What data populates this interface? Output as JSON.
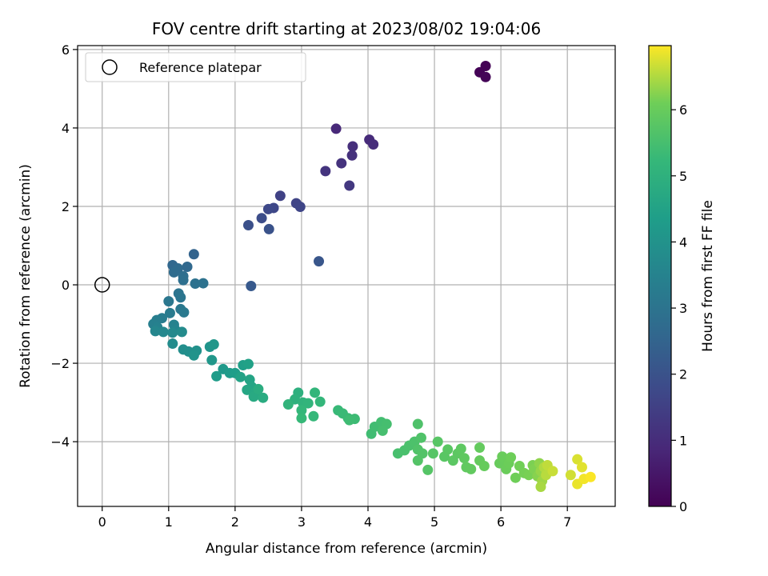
{
  "chart_data": {
    "type": "scatter",
    "title": "FOV centre drift starting at 2023/08/02 19:04:06",
    "xlabel": "Angular distance from reference (arcmin)",
    "ylabel": "Rotation from reference (arcmin)",
    "xlim": [
      -0.37,
      7.72
    ],
    "ylim": [
      -5.65,
      6.1
    ],
    "xticks": [
      0,
      1,
      2,
      3,
      4,
      5,
      6,
      7
    ],
    "yticks": [
      -4,
      -2,
      0,
      2,
      4,
      6
    ],
    "grid": true,
    "legend": {
      "position": "top-left",
      "entries": [
        "Reference platepar"
      ]
    },
    "reference_point": {
      "x": 0,
      "y": 0
    },
    "colorbar": {
      "label": "Hours from first FF file",
      "colormap": "viridis",
      "range": [
        0,
        6.97
      ],
      "ticks": [
        0,
        1,
        2,
        3,
        4,
        5,
        6
      ]
    },
    "points": [
      {
        "x": 5.77,
        "y": 5.58,
        "c": 0.02
      },
      {
        "x": 5.68,
        "y": 5.42,
        "c": 0.05
      },
      {
        "x": 5.77,
        "y": 5.3,
        "c": 0.08
      },
      {
        "x": 3.52,
        "y": 3.98,
        "c": 0.9
      },
      {
        "x": 4.02,
        "y": 3.7,
        "c": 0.95
      },
      {
        "x": 4.08,
        "y": 3.58,
        "c": 1.0
      },
      {
        "x": 3.77,
        "y": 3.53,
        "c": 1.05
      },
      {
        "x": 3.76,
        "y": 3.3,
        "c": 1.1
      },
      {
        "x": 3.6,
        "y": 3.1,
        "c": 1.15
      },
      {
        "x": 3.36,
        "y": 2.9,
        "c": 1.2
      },
      {
        "x": 3.72,
        "y": 2.53,
        "c": 1.3
      },
      {
        "x": 2.68,
        "y": 2.27,
        "c": 1.55
      },
      {
        "x": 2.92,
        "y": 2.08,
        "c": 1.6
      },
      {
        "x": 2.98,
        "y": 1.99,
        "c": 1.65
      },
      {
        "x": 2.58,
        "y": 1.96,
        "c": 1.7
      },
      {
        "x": 2.5,
        "y": 1.93,
        "c": 1.75
      },
      {
        "x": 2.4,
        "y": 1.7,
        "c": 1.85
      },
      {
        "x": 2.2,
        "y": 1.52,
        "c": 1.95
      },
      {
        "x": 2.51,
        "y": 1.42,
        "c": 2.0
      },
      {
        "x": 3.26,
        "y": 0.6,
        "c": 2.1
      },
      {
        "x": 2.24,
        "y": -0.03,
        "c": 2.2
      },
      {
        "x": 1.38,
        "y": 0.78,
        "c": 2.5
      },
      {
        "x": 1.06,
        "y": 0.5,
        "c": 2.6
      },
      {
        "x": 1.28,
        "y": 0.46,
        "c": 2.65
      },
      {
        "x": 1.14,
        "y": 0.42,
        "c": 2.7
      },
      {
        "x": 1.08,
        "y": 0.32,
        "c": 2.75
      },
      {
        "x": 1.22,
        "y": 0.22,
        "c": 2.8
      },
      {
        "x": 1.22,
        "y": 0.12,
        "c": 2.85
      },
      {
        "x": 1.4,
        "y": 0.03,
        "c": 2.9
      },
      {
        "x": 1.52,
        "y": 0.04,
        "c": 2.95
      },
      {
        "x": 1.15,
        "y": -0.22,
        "c": 3.0
      },
      {
        "x": 1.18,
        "y": -0.32,
        "c": 3.05
      },
      {
        "x": 1.0,
        "y": -0.42,
        "c": 3.1
      },
      {
        "x": 1.18,
        "y": -0.62,
        "c": 3.15
      },
      {
        "x": 1.23,
        "y": -0.7,
        "c": 3.2
      },
      {
        "x": 1.02,
        "y": -0.72,
        "c": 3.25
      },
      {
        "x": 0.9,
        "y": -0.85,
        "c": 3.3
      },
      {
        "x": 0.82,
        "y": -0.9,
        "c": 3.35
      },
      {
        "x": 0.77,
        "y": -1.0,
        "c": 3.4
      },
      {
        "x": 0.83,
        "y": -1.08,
        "c": 3.45
      },
      {
        "x": 1.08,
        "y": -1.02,
        "c": 3.5
      },
      {
        "x": 1.1,
        "y": -1.15,
        "c": 3.55
      },
      {
        "x": 0.8,
        "y": -1.18,
        "c": 3.6
      },
      {
        "x": 0.92,
        "y": -1.2,
        "c": 3.65
      },
      {
        "x": 1.06,
        "y": -1.22,
        "c": 3.7
      },
      {
        "x": 1.2,
        "y": -1.2,
        "c": 3.75
      },
      {
        "x": 1.06,
        "y": -1.5,
        "c": 3.8
      },
      {
        "x": 1.22,
        "y": -1.65,
        "c": 3.85
      },
      {
        "x": 1.3,
        "y": -1.7,
        "c": 3.9
      },
      {
        "x": 1.42,
        "y": -1.68,
        "c": 3.95
      },
      {
        "x": 1.38,
        "y": -1.8,
        "c": 4.0
      },
      {
        "x": 1.62,
        "y": -1.58,
        "c": 4.05
      },
      {
        "x": 1.68,
        "y": -1.52,
        "c": 4.1
      },
      {
        "x": 1.65,
        "y": -1.92,
        "c": 4.15
      },
      {
        "x": 1.82,
        "y": -2.15,
        "c": 4.2
      },
      {
        "x": 1.92,
        "y": -2.25,
        "c": 4.25
      },
      {
        "x": 1.72,
        "y": -2.33,
        "c": 4.3
      },
      {
        "x": 2.0,
        "y": -2.25,
        "c": 4.35
      },
      {
        "x": 2.12,
        "y": -2.05,
        "c": 4.4
      },
      {
        "x": 2.2,
        "y": -2.02,
        "c": 4.45
      },
      {
        "x": 2.08,
        "y": -2.35,
        "c": 4.5
      },
      {
        "x": 2.22,
        "y": -2.42,
        "c": 4.55
      },
      {
        "x": 2.25,
        "y": -2.6,
        "c": 4.6
      },
      {
        "x": 2.18,
        "y": -2.68,
        "c": 4.65
      },
      {
        "x": 2.3,
        "y": -2.75,
        "c": 4.7
      },
      {
        "x": 2.28,
        "y": -2.85,
        "c": 4.75
      },
      {
        "x": 2.42,
        "y": -2.88,
        "c": 4.8
      },
      {
        "x": 2.35,
        "y": -2.66,
        "c": 4.85
      },
      {
        "x": 2.95,
        "y": -2.75,
        "c": 4.95
      },
      {
        "x": 2.9,
        "y": -2.92,
        "c": 5.0
      },
      {
        "x": 3.02,
        "y": -3.0,
        "c": 5.05
      },
      {
        "x": 2.8,
        "y": -3.05,
        "c": 5.1
      },
      {
        "x": 3.1,
        "y": -3.02,
        "c": 5.12
      },
      {
        "x": 3.2,
        "y": -2.75,
        "c": 5.15
      },
      {
        "x": 3.28,
        "y": -2.98,
        "c": 5.18
      },
      {
        "x": 3.0,
        "y": -3.2,
        "c": 5.2
      },
      {
        "x": 3.18,
        "y": -3.35,
        "c": 5.22
      },
      {
        "x": 3.0,
        "y": -3.4,
        "c": 5.25
      },
      {
        "x": 3.55,
        "y": -3.2,
        "c": 5.28
      },
      {
        "x": 3.62,
        "y": -3.28,
        "c": 5.3
      },
      {
        "x": 3.7,
        "y": -3.4,
        "c": 5.32
      },
      {
        "x": 3.8,
        "y": -3.42,
        "c": 5.35
      },
      {
        "x": 3.72,
        "y": -3.45,
        "c": 5.38
      },
      {
        "x": 4.05,
        "y": -3.8,
        "c": 5.4
      },
      {
        "x": 4.1,
        "y": -3.62,
        "c": 5.42
      },
      {
        "x": 4.2,
        "y": -3.5,
        "c": 5.45
      },
      {
        "x": 4.28,
        "y": -3.55,
        "c": 5.48
      },
      {
        "x": 4.22,
        "y": -3.72,
        "c": 5.5
      },
      {
        "x": 4.45,
        "y": -4.3,
        "c": 5.52
      },
      {
        "x": 4.55,
        "y": -4.22,
        "c": 5.55
      },
      {
        "x": 4.62,
        "y": -4.1,
        "c": 5.58
      },
      {
        "x": 4.7,
        "y": -4.0,
        "c": 5.6
      },
      {
        "x": 4.75,
        "y": -3.55,
        "c": 5.62
      },
      {
        "x": 4.8,
        "y": -3.9,
        "c": 5.64
      },
      {
        "x": 4.75,
        "y": -4.2,
        "c": 5.66
      },
      {
        "x": 4.82,
        "y": -4.3,
        "c": 5.68
      },
      {
        "x": 4.75,
        "y": -4.48,
        "c": 5.7
      },
      {
        "x": 4.9,
        "y": -4.72,
        "c": 5.72
      },
      {
        "x": 4.98,
        "y": -4.3,
        "c": 5.74
      },
      {
        "x": 5.05,
        "y": -4.0,
        "c": 5.76
      },
      {
        "x": 5.15,
        "y": -4.38,
        "c": 5.78
      },
      {
        "x": 5.2,
        "y": -4.2,
        "c": 5.8
      },
      {
        "x": 5.28,
        "y": -4.48,
        "c": 5.82
      },
      {
        "x": 5.35,
        "y": -4.3,
        "c": 5.84
      },
      {
        "x": 5.4,
        "y": -4.18,
        "c": 5.86
      },
      {
        "x": 5.45,
        "y": -4.42,
        "c": 5.88
      },
      {
        "x": 5.48,
        "y": -4.65,
        "c": 5.9
      },
      {
        "x": 5.55,
        "y": -4.7,
        "c": 5.92
      },
      {
        "x": 5.68,
        "y": -4.15,
        "c": 5.94
      },
      {
        "x": 5.68,
        "y": -4.48,
        "c": 5.96
      },
      {
        "x": 5.75,
        "y": -4.62,
        "c": 5.98
      },
      {
        "x": 5.98,
        "y": -4.55,
        "c": 6.0
      },
      {
        "x": 6.02,
        "y": -4.38,
        "c": 6.02
      },
      {
        "x": 6.08,
        "y": -4.7,
        "c": 6.04
      },
      {
        "x": 6.12,
        "y": -4.55,
        "c": 6.06
      },
      {
        "x": 6.15,
        "y": -4.4,
        "c": 6.08
      },
      {
        "x": 6.22,
        "y": -4.92,
        "c": 6.1
      },
      {
        "x": 6.28,
        "y": -4.62,
        "c": 6.12
      },
      {
        "x": 6.35,
        "y": -4.8,
        "c": 6.14
      },
      {
        "x": 6.42,
        "y": -4.85,
        "c": 6.16
      },
      {
        "x": 6.48,
        "y": -4.6,
        "c": 6.18
      },
      {
        "x": 6.5,
        "y": -4.7,
        "c": 6.2
      },
      {
        "x": 6.55,
        "y": -4.88,
        "c": 6.25
      },
      {
        "x": 6.58,
        "y": -4.55,
        "c": 6.3
      },
      {
        "x": 6.6,
        "y": -4.75,
        "c": 6.35
      },
      {
        "x": 6.62,
        "y": -5.0,
        "c": 6.4
      },
      {
        "x": 6.6,
        "y": -5.15,
        "c": 6.45
      },
      {
        "x": 6.65,
        "y": -4.65,
        "c": 6.5
      },
      {
        "x": 6.68,
        "y": -4.85,
        "c": 6.55
      },
      {
        "x": 6.7,
        "y": -4.6,
        "c": 6.6
      },
      {
        "x": 6.78,
        "y": -4.75,
        "c": 6.65
      },
      {
        "x": 7.05,
        "y": -4.85,
        "c": 6.7
      },
      {
        "x": 7.15,
        "y": -4.45,
        "c": 6.75
      },
      {
        "x": 7.22,
        "y": -4.65,
        "c": 6.8
      },
      {
        "x": 7.15,
        "y": -5.08,
        "c": 6.85
      },
      {
        "x": 7.25,
        "y": -4.95,
        "c": 6.9
      },
      {
        "x": 7.35,
        "y": -4.9,
        "c": 6.95
      }
    ]
  }
}
